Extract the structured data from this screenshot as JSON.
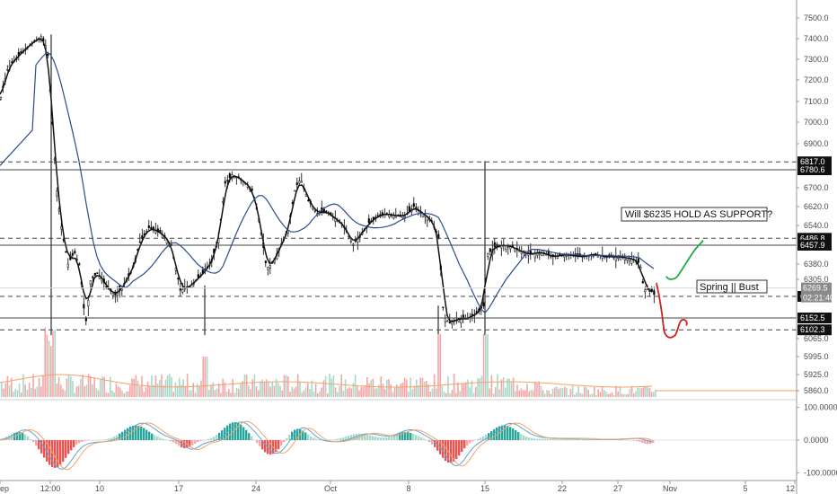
{
  "chart_data": [
    {
      "type": "candlestick",
      "title": "",
      "x_ticks": [
        "ep",
        "12:00",
        "10",
        "17",
        "24",
        "Oct",
        "8",
        "15",
        "22",
        "27",
        "Nov",
        "5",
        "12"
      ],
      "y_ticks": [
        7500.0,
        7400.0,
        7300.0,
        7200.0,
        7100.0,
        7000.0,
        6900.0,
        6780.6,
        6700.0,
        6620.0,
        6540.0,
        6457.9,
        6380.0,
        6305.0,
        6235.1,
        6152.5,
        6065.0,
        5995.0,
        5925.0,
        5860.0
      ],
      "y_tick_labels": [
        "7500.0",
        "7400.0",
        "7300.0",
        "7200.0",
        "7100.0",
        "7000.0",
        "6900.0",
        "6780.6",
        "6700.0",
        "6620.0",
        "6540.0",
        "6457.9",
        "6380.0",
        "6305.0",
        "6235.1",
        "6152.5",
        "6065.0",
        "5995.0",
        "5925.0",
        "5860.0"
      ],
      "ylim": [
        5830,
        7600
      ],
      "y_scale": "log-like (tick spacing narrows toward the bottom)",
      "horizontal_levels": [
        {
          "value": 6817.0,
          "label": "6817.0",
          "style": "dashed"
        },
        {
          "value": 6780.6,
          "label": "6780.6",
          "style": "solid"
        },
        {
          "value": 6486.8,
          "label": "6486.8",
          "style": "dashed"
        },
        {
          "value": 6457.9,
          "label": "6457.9",
          "style": "solid"
        },
        {
          "value": 6235.1,
          "label": "6235.1",
          "style": "dashed"
        },
        {
          "value": 6152.5,
          "label": "6152.5",
          "style": "solid"
        },
        {
          "value": 6102.3,
          "label": "6102.3",
          "style": "dashed"
        }
      ],
      "last_price": {
        "value": 6269.5,
        "label": "6269.5",
        "countdown": "02:21:40"
      },
      "price_path": [
        [
          0,
          7120
        ],
        [
          8,
          7260
        ],
        [
          20,
          7320
        ],
        [
          35,
          7380
        ],
        [
          45,
          7410
        ],
        [
          52,
          7350
        ],
        [
          58,
          6960
        ],
        [
          62,
          6700
        ],
        [
          68,
          6520
        ],
        [
          75,
          6380
        ],
        [
          82,
          6430
        ],
        [
          88,
          6370
        ],
        [
          92,
          6200
        ],
        [
          95,
          6140
        ],
        [
          100,
          6300
        ],
        [
          108,
          6340
        ],
        [
          118,
          6270
        ],
        [
          128,
          6240
        ],
        [
          135,
          6270
        ],
        [
          145,
          6340
        ],
        [
          155,
          6470
        ],
        [
          165,
          6530
        ],
        [
          178,
          6510
        ],
        [
          190,
          6460
        ],
        [
          200,
          6260
        ],
        [
          212,
          6280
        ],
        [
          222,
          6320
        ],
        [
          232,
          6370
        ],
        [
          242,
          6470
        ],
        [
          250,
          6720
        ],
        [
          258,
          6760
        ],
        [
          270,
          6730
        ],
        [
          280,
          6690
        ],
        [
          288,
          6560
        ],
        [
          296,
          6360
        ],
        [
          302,
          6380
        ],
        [
          312,
          6460
        ],
        [
          320,
          6520
        ],
        [
          328,
          6700
        ],
        [
          334,
          6740
        ],
        [
          342,
          6650
        ],
        [
          352,
          6590
        ],
        [
          362,
          6600
        ],
        [
          372,
          6570
        ],
        [
          382,
          6540
        ],
        [
          392,
          6460
        ],
        [
          400,
          6500
        ],
        [
          410,
          6550
        ],
        [
          420,
          6580
        ],
        [
          430,
          6590
        ],
        [
          440,
          6580
        ],
        [
          450,
          6580
        ],
        [
          460,
          6620
        ],
        [
          470,
          6590
        ],
        [
          480,
          6560
        ],
        [
          488,
          6480
        ],
        [
          493,
          6160
        ],
        [
          500,
          6130
        ],
        [
          510,
          6150
        ],
        [
          520,
          6150
        ],
        [
          530,
          6170
        ],
        [
          538,
          6200
        ],
        [
          542,
          6420
        ],
        [
          550,
          6450
        ],
        [
          560,
          6460
        ],
        [
          570,
          6450
        ],
        [
          580,
          6430
        ],
        [
          590,
          6420
        ],
        [
          600,
          6430
        ],
        [
          615,
          6410
        ],
        [
          630,
          6420
        ],
        [
          645,
          6410
        ],
        [
          660,
          6420
        ],
        [
          675,
          6410
        ],
        [
          690,
          6410
        ],
        [
          705,
          6400
        ],
        [
          712,
          6380
        ],
        [
          716,
          6260
        ],
        [
          722,
          6270
        ],
        [
          728,
          6240
        ]
      ],
      "volume_hint": "volume histogram bars under price, red and green",
      "projections": [
        {
          "name": "",
          "color": "#22aa44",
          "shape": "up-hook to ~6480"
        },
        {
          "name": "",
          "color": "#cc2222",
          "shape": "down to ~6070 then small hook"
        }
      ],
      "annotations": [
        {
          "text": "Will $6235 HOLD AS SUPPORT?"
        },
        {
          "text": "Spring || Bust"
        }
      ]
    },
    {
      "type": "line",
      "title": "",
      "y_tick_labels": [
        "100.0000",
        "0.0000",
        "-100.0000"
      ],
      "ylim": [
        -110,
        110
      ]
    }
  ],
  "colors": {
    "up": "#26a69a",
    "down": "#ef5350",
    "candle": "#000000",
    "ma": "#2b4c8c",
    "vol_up": "#a8d8c8",
    "vol_down": "#f4a6a6",
    "green_proj": "#22aa44",
    "red_proj": "#cc2222"
  }
}
